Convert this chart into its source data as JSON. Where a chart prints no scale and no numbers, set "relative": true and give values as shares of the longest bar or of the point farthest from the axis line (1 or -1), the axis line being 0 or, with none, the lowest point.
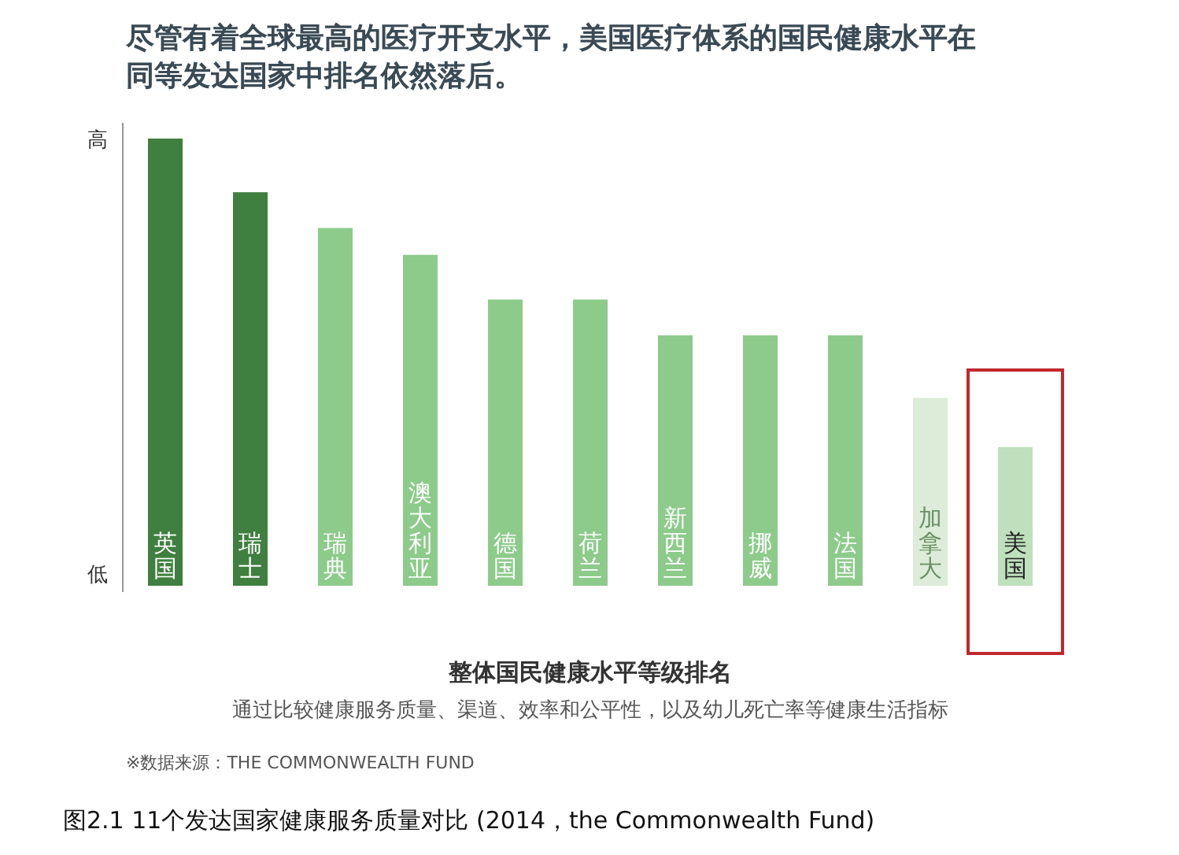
{
  "chart_data": {
    "type": "bar",
    "relative": true,
    "title": "尽管有着全球最高的医疗开支水平，美国医疗体系的国民健康水平在同等发达国家中排名依然落后。",
    "xlabel": "整体国民健康水平等级排名",
    "categories": [
      "英国",
      "瑞士",
      "瑞典",
      "澳大利亚",
      "德国",
      "荷兰",
      "新西兰",
      "挪威",
      "法国",
      "加拿大",
      "美国"
    ],
    "values": [
      1,
      0.88,
      0.8,
      0.74,
      0.64,
      0.64,
      0.56,
      0.56,
      0.56,
      0.42,
      0.31
    ],
    "colors": [
      "#3f7f3f",
      "#3f7f3f",
      "#8ccb8a",
      "#8ccb8a",
      "#8ccb8a",
      "#8ccb8a",
      "#8ccb8a",
      "#8ccb8a",
      "#8ccb8a",
      "#dcecd8",
      "#bfe0bc"
    ],
    "annotations": [
      "高",
      "低",
      "通过比较健康服务质量、渠道、效率和公平性，以及幼儿死亡率等健康生活指标",
      "※数据来源：THE COMMONWEALTH FUND",
      "图2.1 11个发达国家健康服务质量对比 (2014，the Commonwealth Fund)"
    ]
  }
}
